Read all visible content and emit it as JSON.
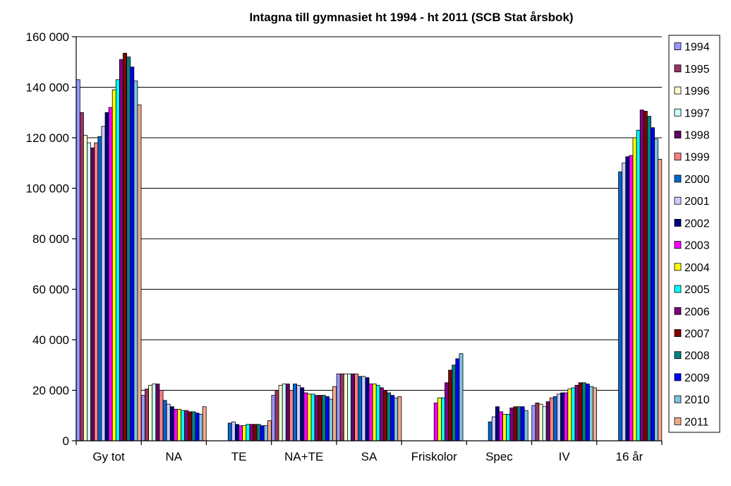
{
  "chart_data": {
    "type": "bar",
    "title": "Intagna till gymnasiet ht 1994 - ht 2011 (SCB Stat årsbok)",
    "xlabel": "",
    "ylabel": "",
    "ylim": [
      0,
      160000
    ],
    "yticks": [
      0,
      20000,
      40000,
      60000,
      80000,
      100000,
      120000,
      140000,
      160000
    ],
    "ytick_labels": [
      "0",
      "20 000",
      "40 000",
      "60 000",
      "80 000",
      "100 000",
      "120 000",
      "140 000",
      "160 000"
    ],
    "grid": true,
    "legend_position": "right",
    "categories": [
      "Gy tot",
      "NA",
      "TE",
      "NA+TE",
      "SA",
      "Friskolor",
      "Spec",
      "IV",
      "16 år"
    ],
    "series": [
      {
        "name": "1994",
        "color": "#9999FF",
        "values": [
          143000,
          18000,
          null,
          18000,
          26500,
          null,
          null,
          14000,
          null
        ]
      },
      {
        "name": "1995",
        "color": "#993366",
        "values": [
          130000,
          20500,
          null,
          20000,
          26500,
          null,
          null,
          15000,
          null
        ]
      },
      {
        "name": "1996",
        "color": "#FFFFCC",
        "values": [
          121000,
          22000,
          null,
          22000,
          26500,
          null,
          null,
          14500,
          null
        ]
      },
      {
        "name": "1997",
        "color": "#CCFFFF",
        "values": [
          118000,
          22500,
          null,
          22500,
          26500,
          null,
          null,
          13500,
          null
        ]
      },
      {
        "name": "1998",
        "color": "#660066",
        "values": [
          116000,
          22500,
          null,
          22500,
          26500,
          null,
          null,
          15500,
          null
        ]
      },
      {
        "name": "1999",
        "color": "#FF8080",
        "values": [
          118000,
          20000,
          null,
          20000,
          26500,
          null,
          null,
          17000,
          null
        ]
      },
      {
        "name": "2000",
        "color": "#0066CC",
        "values": [
          120500,
          16000,
          7000,
          22500,
          25500,
          null,
          7500,
          17500,
          106500
        ]
      },
      {
        "name": "2001",
        "color": "#CCCCFF",
        "values": [
          124500,
          14500,
          7500,
          22000,
          25500,
          null,
          9500,
          18500,
          110000
        ]
      },
      {
        "name": "2002",
        "color": "#000080",
        "values": [
          130000,
          13500,
          6500,
          21000,
          25000,
          null,
          13500,
          19000,
          112500
        ]
      },
      {
        "name": "2003",
        "color": "#FF00FF",
        "values": [
          132000,
          12500,
          6000,
          19000,
          22500,
          15000,
          11500,
          19000,
          113000
        ]
      },
      {
        "name": "2004",
        "color": "#FFFF00",
        "values": [
          139000,
          12500,
          6000,
          18500,
          22500,
          17000,
          10500,
          20500,
          120000
        ]
      },
      {
        "name": "2005",
        "color": "#00FFFF",
        "values": [
          143000,
          12000,
          6500,
          18500,
          22000,
          17000,
          10500,
          21000,
          123000
        ]
      },
      {
        "name": "2006",
        "color": "#800080",
        "values": [
          151000,
          12000,
          6500,
          18000,
          21000,
          23000,
          13000,
          22000,
          131000
        ]
      },
      {
        "name": "2007",
        "color": "#800000",
        "values": [
          153500,
          11500,
          6500,
          18000,
          20000,
          28000,
          13500,
          23000,
          130500
        ]
      },
      {
        "name": "2008",
        "color": "#008080",
        "values": [
          152000,
          11500,
          6500,
          18000,
          19000,
          30000,
          13500,
          23000,
          128500
        ]
      },
      {
        "name": "2009",
        "color": "#0000FF",
        "values": [
          148000,
          11000,
          6000,
          17500,
          18000,
          32500,
          13500,
          22500,
          124000
        ]
      },
      {
        "name": "2010",
        "color": "#7FC4E0",
        "values": [
          142500,
          10500,
          6000,
          16500,
          17000,
          34500,
          12000,
          21500,
          119500
        ]
      },
      {
        "name": "2011",
        "color": "#F4A98A",
        "values": [
          133000,
          13500,
          8000,
          21500,
          17500,
          null,
          null,
          21000,
          111500
        ]
      }
    ]
  }
}
